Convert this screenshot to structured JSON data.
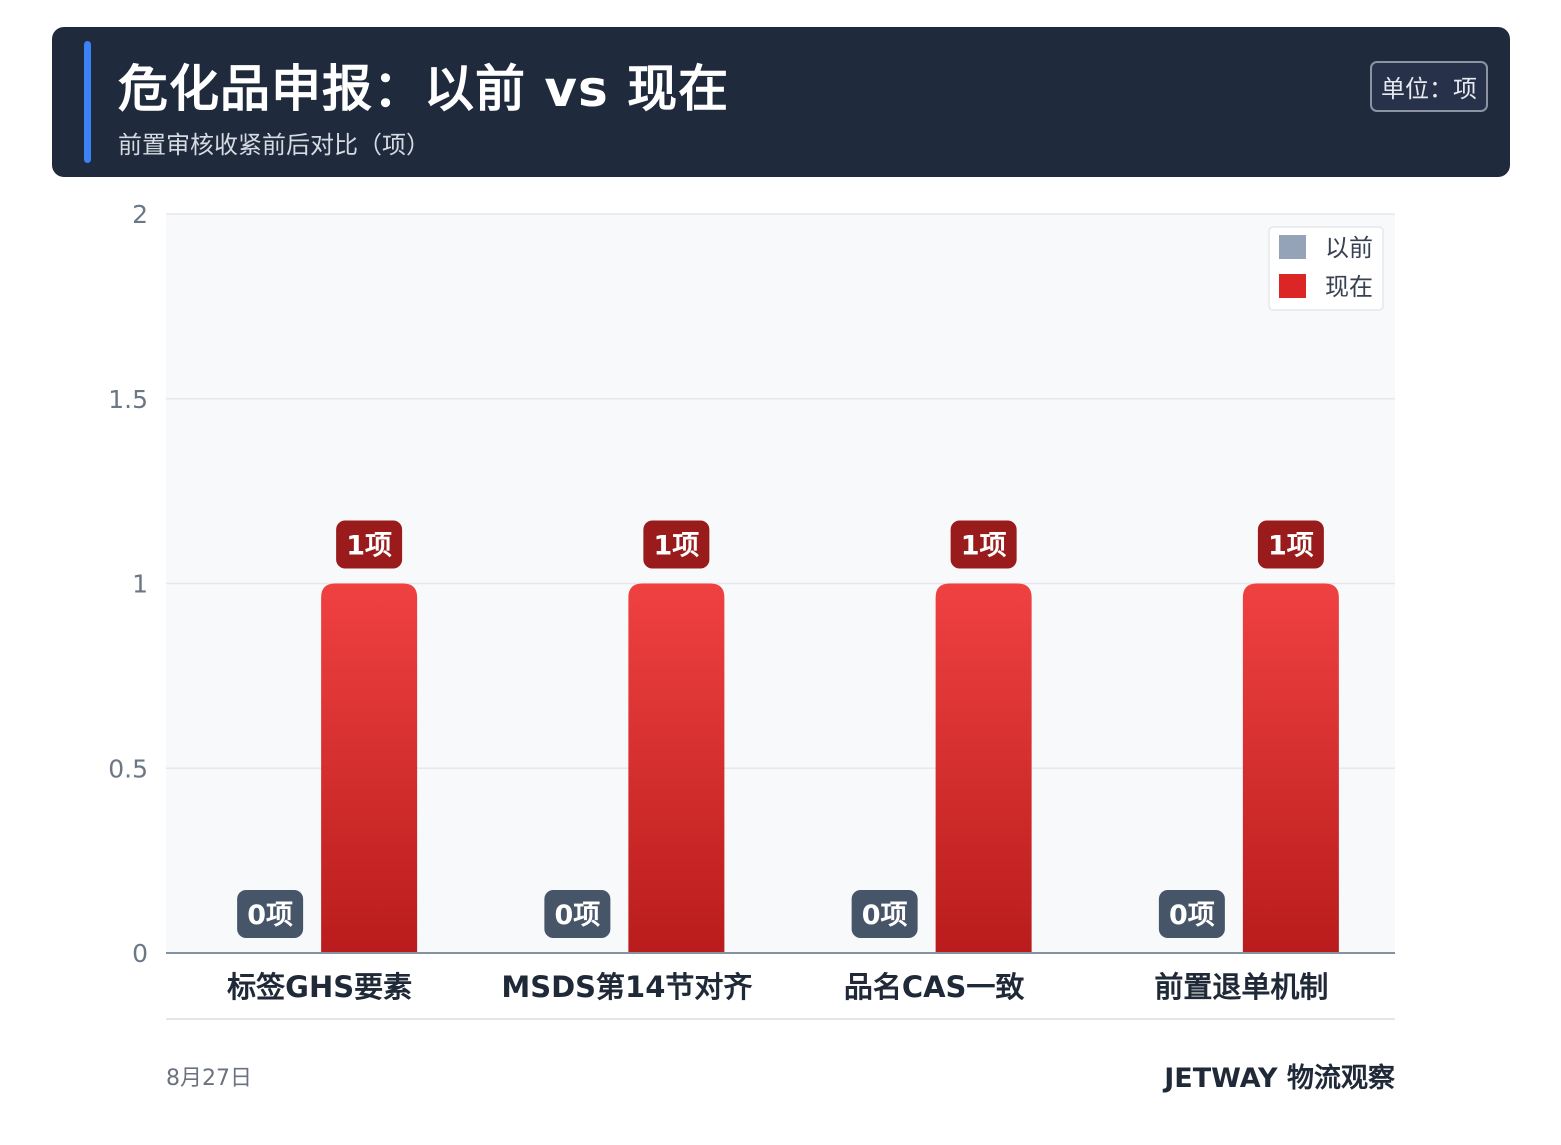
{
  "header": {
    "title": "危化品申报：以前 vs 现在",
    "subtitle": "前置审核收紧前后对比（项）",
    "unit_badge": "单位：项"
  },
  "footer": {
    "date": "8月27日",
    "brand": "JETWAY 物流观察"
  },
  "chart_data": {
    "type": "bar",
    "categories": [
      "标签GHS要素",
      "MSDS第14节对齐",
      "品名CAS一致",
      "前置退单机制"
    ],
    "series": [
      {
        "name": "以前",
        "values": [
          0,
          0,
          0,
          0
        ],
        "color": "#94a3b8",
        "label_color": "#475569"
      },
      {
        "name": "现在",
        "values": [
          1,
          1,
          1,
          1
        ],
        "color": "#dc2626",
        "label_color": "#991b1b"
      }
    ],
    "value_suffix": "项",
    "ylim": [
      0,
      2
    ],
    "yticks": [
      "0",
      "0.5",
      "1",
      "1.5",
      "2"
    ],
    "legend_position": "top-right",
    "grid": true
  }
}
